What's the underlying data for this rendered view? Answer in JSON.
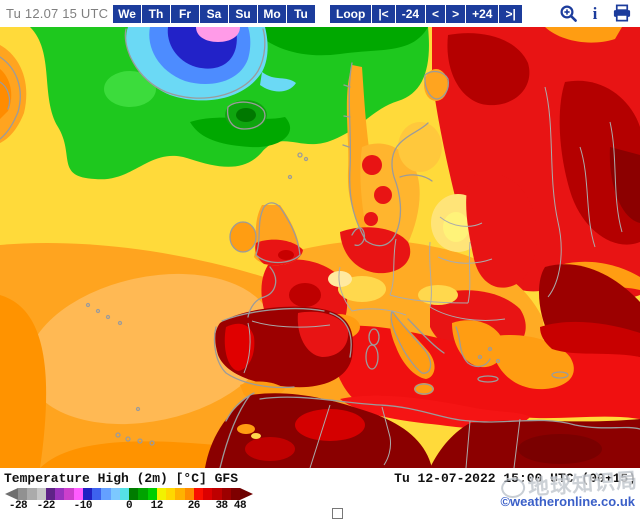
{
  "toolbar": {
    "timestamp": "Tu 12.07 15 UTC",
    "days": [
      "We",
      "Th",
      "Fr",
      "Sa",
      "Su",
      "Mo",
      "Tu"
    ],
    "loop": [
      "Loop",
      "|<",
      "-24",
      "<",
      ">",
      "+24",
      ">|"
    ],
    "icons": {
      "zoom": "zoom-in-icon",
      "info_glyph": "i",
      "print": "print-icon"
    },
    "accent_color": "#1c3c9c"
  },
  "legend": {
    "title": "Temperature High (2m) [°C] GFS",
    "valid": "Tu 12-07-2022 15:00 UTC (00+15)",
    "copyright": "©weatheronline.co.uk",
    "watermark": "地球知识局",
    "colorbar": {
      "left_arrow": "#6f6f6f",
      "right_arrow": "#6e0000",
      "segment_colors": [
        "#919191",
        "#ababab",
        "#c6c6c6",
        "#5e2387",
        "#9932be",
        "#cc3fcc",
        "#ff5cff",
        "#2121c3",
        "#3d62ee",
        "#64a0ff",
        "#7cc8ff",
        "#55e1e6",
        "#007c00",
        "#00a300",
        "#00ce00",
        "#f2f200",
        "#ffd800",
        "#ffb200",
        "#ff8c00",
        "#fa0f00",
        "#dc0000",
        "#be0000",
        "#9c0000",
        "#7e0000"
      ],
      "ticks": [
        {
          "label": "-28",
          "pos": 0
        },
        {
          "label": "-22",
          "pos": 12.5
        },
        {
          "label": "-10",
          "pos": 29.2
        },
        {
          "label": "0",
          "pos": 50
        },
        {
          "label": "12",
          "pos": 62.5
        },
        {
          "label": "26",
          "pos": 79.2
        },
        {
          "label": "38",
          "pos": 91.7
        },
        {
          "label": "48",
          "pos": 100
        }
      ]
    }
  }
}
